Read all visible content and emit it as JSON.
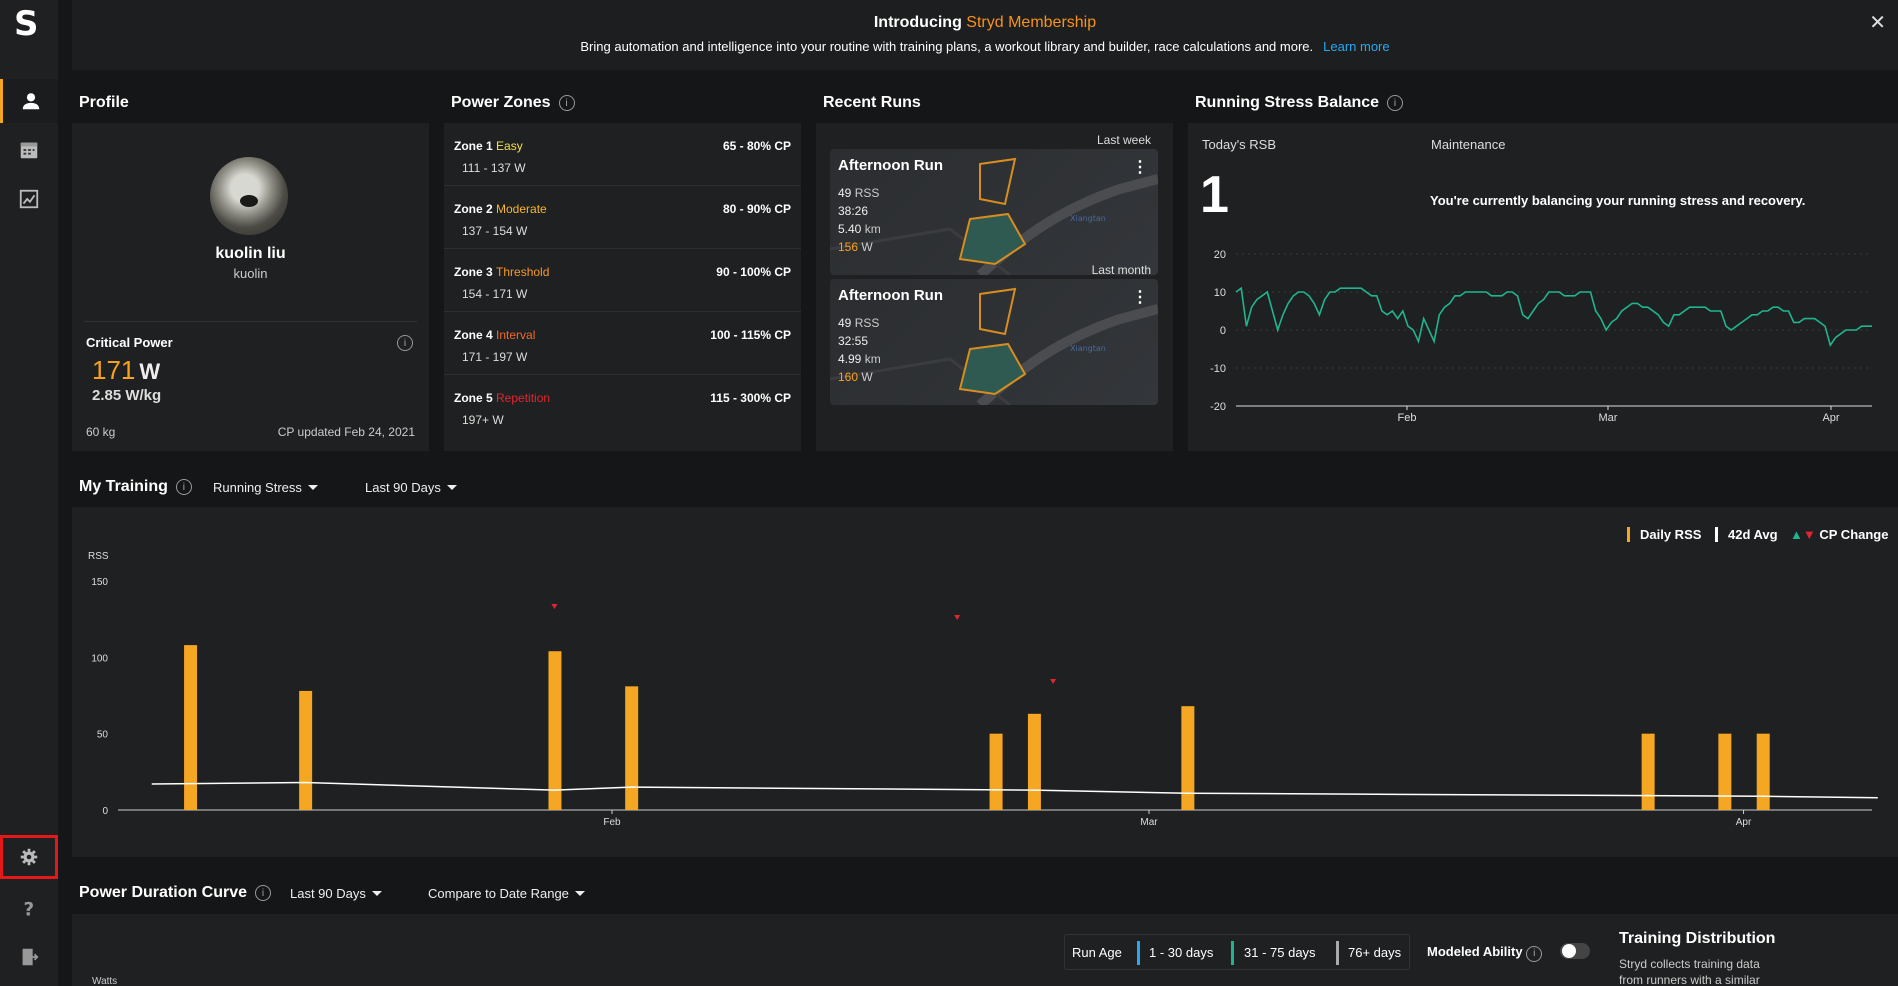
{
  "banner": {
    "title_prefix": "Introducing",
    "title_accent": "Stryd Membership",
    "subtitle": "Bring automation and intelligence into your routine with training plans, a workout library and builder, race calculations and more.",
    "link": "Learn more",
    "close": "✕"
  },
  "sidebar": {
    "logo": "S",
    "items": [
      "profile",
      "calendar",
      "analysis",
      "settings",
      "help",
      "logout"
    ]
  },
  "profile": {
    "section_title": "Profile",
    "name": "kuolin liu",
    "username": "kuolin",
    "cp_label": "Critical Power",
    "cp_value": "171",
    "cp_unit": "W",
    "wkg": "2.85 W/kg",
    "weight": "60 kg",
    "updated": "CP updated Feb 24, 2021"
  },
  "zones": {
    "section_title": "Power Zones",
    "items": [
      {
        "num": "Zone 1",
        "name": "Easy",
        "color": "#f4e04d",
        "pct": "65 - 80% CP",
        "range": "111 - 137 W"
      },
      {
        "num": "Zone 2",
        "name": "Moderate",
        "color": "#f7b52b",
        "pct": "80 - 90% CP",
        "range": "137 - 154 W"
      },
      {
        "num": "Zone 3",
        "name": "Threshold",
        "color": "#f79a2b",
        "pct": "90 - 100% CP",
        "range": "154 - 171 W"
      },
      {
        "num": "Zone 4",
        "name": "Interval",
        "color": "#ef6a2a",
        "pct": "100 - 115% CP",
        "range": "171 - 197 W"
      },
      {
        "num": "Zone 5",
        "name": "Repetition",
        "color": "#e0272f",
        "pct": "115 - 300% CP",
        "range": "197+ W"
      }
    ]
  },
  "runs": {
    "section_title": "Recent Runs",
    "items": [
      {
        "period": "Last week",
        "title": "Afternoon Run",
        "rss": "49",
        "rss_unit": "RSS",
        "time": "38:26",
        "dist": "5.40",
        "dist_unit": "km",
        "power": "156",
        "power_unit": "W",
        "more": "⋮"
      },
      {
        "period": "Last month",
        "title": "Afternoon Run",
        "rss": "49",
        "rss_unit": "RSS",
        "time": "32:55",
        "dist": "4.99",
        "dist_unit": "km",
        "power": "160",
        "power_unit": "W",
        "more": "⋮"
      }
    ]
  },
  "rsb": {
    "section_title": "Running Stress Balance",
    "today_label": "Today's RSB",
    "today_value": "1",
    "status_label": "Maintenance",
    "message": "You're currently balancing your running stress and recovery.",
    "y_ticks": [
      "20",
      "10",
      "0",
      "-10",
      "-20"
    ],
    "x_ticks": [
      "Feb",
      "Mar",
      "Apr"
    ]
  },
  "training": {
    "section_title": "My Training",
    "metric_dropdown": "Running Stress",
    "range_dropdown": "Last 90 Days",
    "legend_daily": "Daily RSS",
    "legend_avg": "42d Avg",
    "legend_cp": "CP Change",
    "y_title": "RSS",
    "y_ticks": [
      "150",
      "100",
      "50",
      "0"
    ],
    "x_ticks": [
      "Feb",
      "Mar",
      "Apr"
    ]
  },
  "chart_data": [
    {
      "type": "bar",
      "y_axis_title": "RSS",
      "ylim": [
        0,
        150
      ],
      "x_ticks": [
        "Feb",
        "Mar",
        "Apr"
      ],
      "series": [
        {
          "name": "Daily RSS",
          "color": "#f5a623",
          "points": [
            {
              "x": "Jan 10",
              "y": 108
            },
            {
              "x": "Jan 16",
              "y": 78
            },
            {
              "x": "Jan 29",
              "y": 104
            },
            {
              "x": "Feb 2",
              "y": 81
            },
            {
              "x": "Feb 21",
              "y": 50
            },
            {
              "x": "Feb 23",
              "y": 63
            },
            {
              "x": "Mar 3",
              "y": 68
            },
            {
              "x": "Mar 27",
              "y": 50
            },
            {
              "x": "Mar 31",
              "y": 50
            },
            {
              "x": "Apr 2",
              "y": 50
            }
          ]
        },
        {
          "name": "42d Avg",
          "color": "#ffffff",
          "points": [
            {
              "x": "Jan 8",
              "y": 17
            },
            {
              "x": "Jan 16",
              "y": 18
            },
            {
              "x": "Jan 29",
              "y": 13
            },
            {
              "x": "Feb 2",
              "y": 15
            },
            {
              "x": "Feb 23",
              "y": 13
            },
            {
              "x": "Mar 3",
              "y": 11
            },
            {
              "x": "Apr 2",
              "y": 9
            },
            {
              "x": "Apr 8",
              "y": 8
            }
          ]
        }
      ],
      "cp_changes": [
        {
          "x": "Jan 29",
          "direction": "down"
        },
        {
          "x": "Feb 19",
          "direction": "down"
        },
        {
          "x": "Feb 24",
          "direction": "down"
        }
      ]
    },
    {
      "type": "line",
      "title": "Running Stress Balance",
      "ylim": [
        -20,
        20
      ],
      "x_ticks": [
        "Feb",
        "Mar",
        "Apr"
      ],
      "series": [
        {
          "color": "#1fb58f",
          "values": [
            10,
            11,
            1,
            6,
            8,
            9,
            10,
            5,
            0,
            4,
            7,
            9,
            10,
            10,
            9,
            7,
            4,
            8,
            10,
            10,
            11,
            11,
            11,
            11,
            11,
            10,
            9,
            9,
            5,
            4,
            5,
            3,
            5,
            1,
            0,
            -3,
            3,
            0,
            -3,
            4,
            6,
            7,
            9,
            9,
            10,
            10,
            10,
            10,
            10,
            9,
            9,
            9,
            10,
            10,
            9,
            4,
            3,
            5,
            7,
            8,
            10,
            10,
            10,
            9,
            9,
            9,
            10,
            10,
            10,
            5,
            3,
            0,
            2,
            3,
            5,
            6,
            7,
            7,
            6,
            6,
            5,
            4,
            2,
            1,
            4,
            4,
            5,
            6,
            6,
            6,
            6,
            5,
            5,
            5,
            1,
            0,
            1,
            2,
            3,
            4,
            4,
            5,
            5,
            6,
            6,
            5,
            5,
            2,
            2,
            3,
            3,
            3,
            2,
            1,
            -4,
            -2,
            -1,
            0,
            0,
            0,
            1,
            1,
            1
          ]
        }
      ]
    }
  ],
  "power_duration": {
    "section_title": "Power Duration Curve",
    "range_dropdown": "Last 90 Days",
    "compare_dropdown": "Compare to Date Range",
    "y_title": "Watts",
    "run_age_label": "Run Age",
    "age_1": "1 - 30 days",
    "age_2": "31 - 75 days",
    "age_3": "76+ days",
    "modeled_label": "Modeled Ability",
    "dist_title": "Training Distribution",
    "dist_text": "Stryd collects training data from runners with a similar goal distance, age, and gender"
  }
}
